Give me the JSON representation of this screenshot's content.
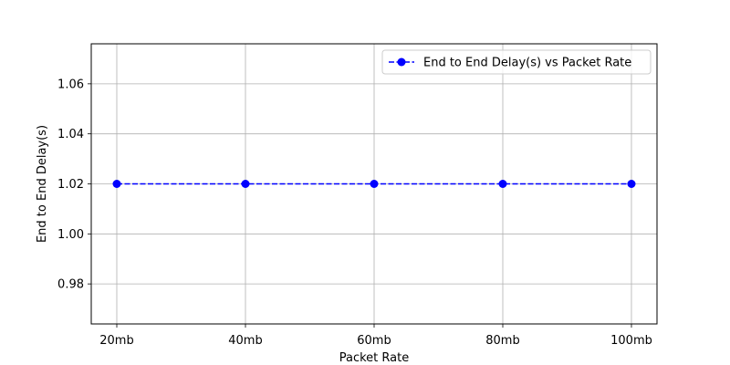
{
  "chart_data": {
    "type": "line",
    "title": "",
    "xlabel": "Packet Rate",
    "ylabel": "End to End Delay(s)",
    "categories": [
      "20mb",
      "40mb",
      "60mb",
      "80mb",
      "100mb"
    ],
    "series": [
      {
        "name": "End to End Delay(s) vs Packet Rate",
        "values": [
          1.02,
          1.02,
          1.02,
          1.02,
          1.02
        ],
        "color": "#0000ff",
        "line_style": "dashed",
        "marker": "circle"
      }
    ],
    "ylim": [
      0.964,
      1.076
    ],
    "yticks": [
      0.98,
      1.0,
      1.02,
      1.04,
      1.06
    ],
    "ytick_labels": [
      "0.98",
      "1.00",
      "1.02",
      "1.04",
      "1.06"
    ],
    "grid": true,
    "legend_position": "top-right"
  }
}
